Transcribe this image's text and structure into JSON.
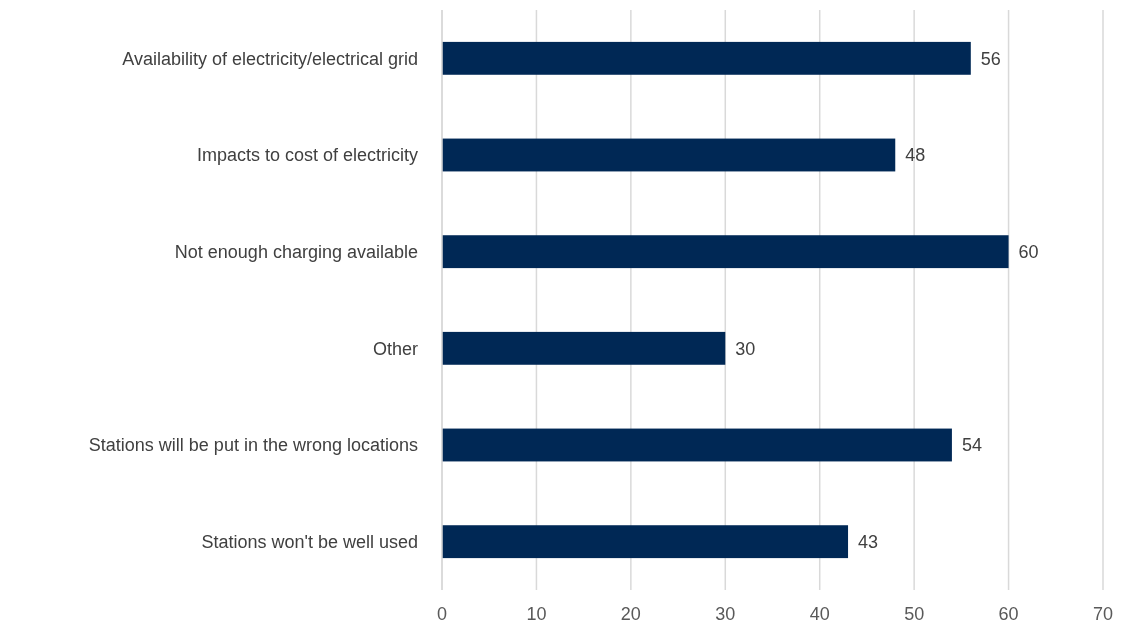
{
  "chart_data": {
    "type": "bar",
    "orientation": "horizontal",
    "categories": [
      "Availability of electricity/electrical grid",
      "Impacts to cost of electricity",
      "Not enough charging available",
      "Other",
      "Stations will be put in the wrong locations",
      "Stations won't be well used"
    ],
    "values": [
      56,
      48,
      60,
      30,
      54,
      43
    ],
    "color": "#002855",
    "xlim": [
      0,
      70
    ],
    "xticks": [
      0,
      10,
      20,
      30,
      40,
      50,
      60,
      70
    ],
    "grid": "x",
    "data_labels": true
  }
}
